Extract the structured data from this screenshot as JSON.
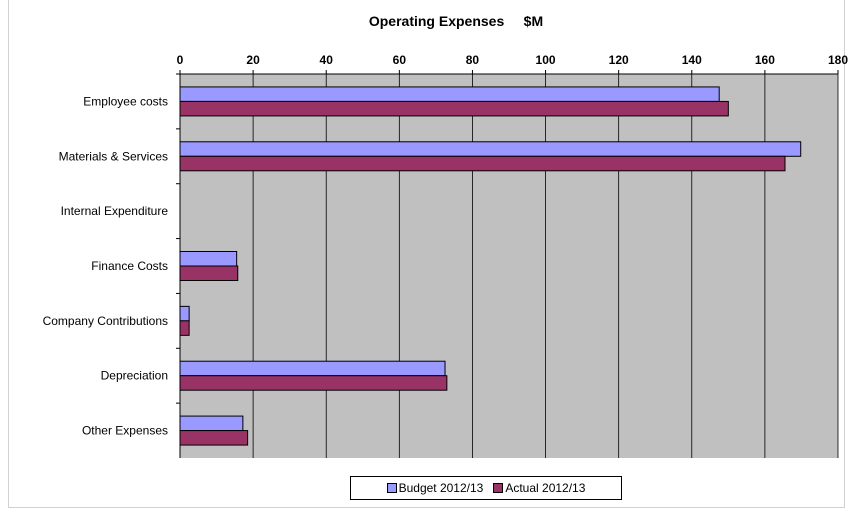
{
  "chart_data": {
    "type": "bar",
    "orientation": "horizontal",
    "title": "Operating Expenses     $M",
    "xlabel": "",
    "ylabel": "",
    "xlim": [
      0,
      180
    ],
    "x_ticks": [
      "0",
      "20",
      "40",
      "60",
      "80",
      "100",
      "120",
      "140",
      "160",
      "180"
    ],
    "x_axis_position": "top",
    "grid": true,
    "plot_background": "#c0c0c0",
    "categories": [
      "Employee costs",
      "Materials & Services",
      "Internal Expenditure",
      "Finance Costs",
      "Company Contributions",
      "Depreciation",
      "Other Expenses"
    ],
    "series": [
      {
        "name": "Budget 2012/13",
        "color": "#9999ff",
        "values": [
          147.5,
          169.8,
          0,
          15.5,
          2.5,
          72.5,
          17.2
        ]
      },
      {
        "name": "Actual 2012/13",
        "color": "#993366",
        "values": [
          150,
          165.5,
          0,
          15.8,
          2.5,
          73,
          18.5
        ]
      }
    ],
    "legend_position": "bottom"
  }
}
